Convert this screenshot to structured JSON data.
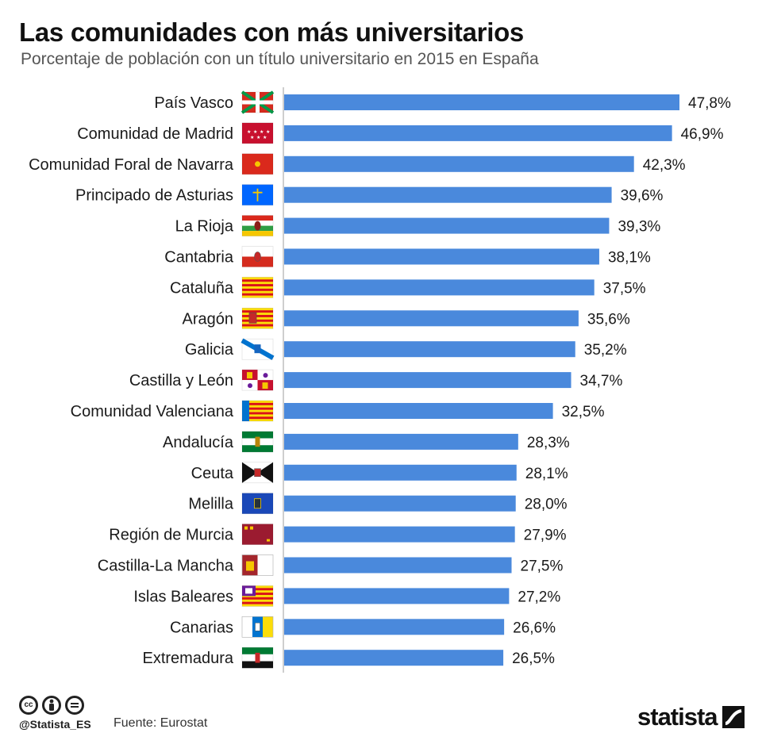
{
  "header": {
    "title": "Las comunidades con más universitarios",
    "subtitle": "Porcentaje de población con un título universitario en 2015 en España"
  },
  "chart_data": {
    "type": "bar",
    "orientation": "horizontal",
    "categories": [
      "País Vasco",
      "Comunidad de Madrid",
      "Comunidad Foral de Navarra",
      "Principado de Asturias",
      "La Rioja",
      "Cantabria",
      "Cataluña",
      "Aragón",
      "Galicia",
      "Castilla y León",
      "Comunidad Valenciana",
      "Andalucía",
      "Ceuta",
      "Melilla",
      "Región de Murcia",
      "Castilla-La Mancha",
      "Islas Baleares",
      "Canarias",
      "Extremadura"
    ],
    "values": [
      47.8,
      46.9,
      42.3,
      39.6,
      39.3,
      38.1,
      37.5,
      35.6,
      35.2,
      34.7,
      32.5,
      28.3,
      28.1,
      28.0,
      27.9,
      27.5,
      27.2,
      26.6,
      26.5
    ],
    "value_labels": [
      "47,8%",
      "46,9%",
      "42,3%",
      "39,6%",
      "39,3%",
      "38,1%",
      "37,5%",
      "35,6%",
      "35,2%",
      "34,7%",
      "32,5%",
      "28,3%",
      "28,1%",
      "28,0%",
      "27,9%",
      "27,5%",
      "27,2%",
      "26,6%",
      "26,5%"
    ],
    "flag_icons": [
      "pais-vasco-flag-icon",
      "madrid-flag-icon",
      "navarra-flag-icon",
      "asturias-flag-icon",
      "la-rioja-flag-icon",
      "cantabria-flag-icon",
      "cataluna-flag-icon",
      "aragon-flag-icon",
      "galicia-flag-icon",
      "castilla-y-leon-flag-icon",
      "valenciana-flag-icon",
      "andalucia-flag-icon",
      "ceuta-flag-icon",
      "melilla-flag-icon",
      "murcia-flag-icon",
      "castilla-la-mancha-flag-icon",
      "baleares-flag-icon",
      "canarias-flag-icon",
      "extremadura-flag-icon"
    ],
    "xlim": [
      0,
      47.8
    ],
    "bar_color": "#4a89dc",
    "grid": false
  },
  "footer": {
    "license_icons": [
      "cc-icon",
      "by-icon",
      "nd-icon"
    ],
    "handle": "@Statista_ES",
    "source": "Fuente: Eurostat",
    "brand": "statista"
  }
}
